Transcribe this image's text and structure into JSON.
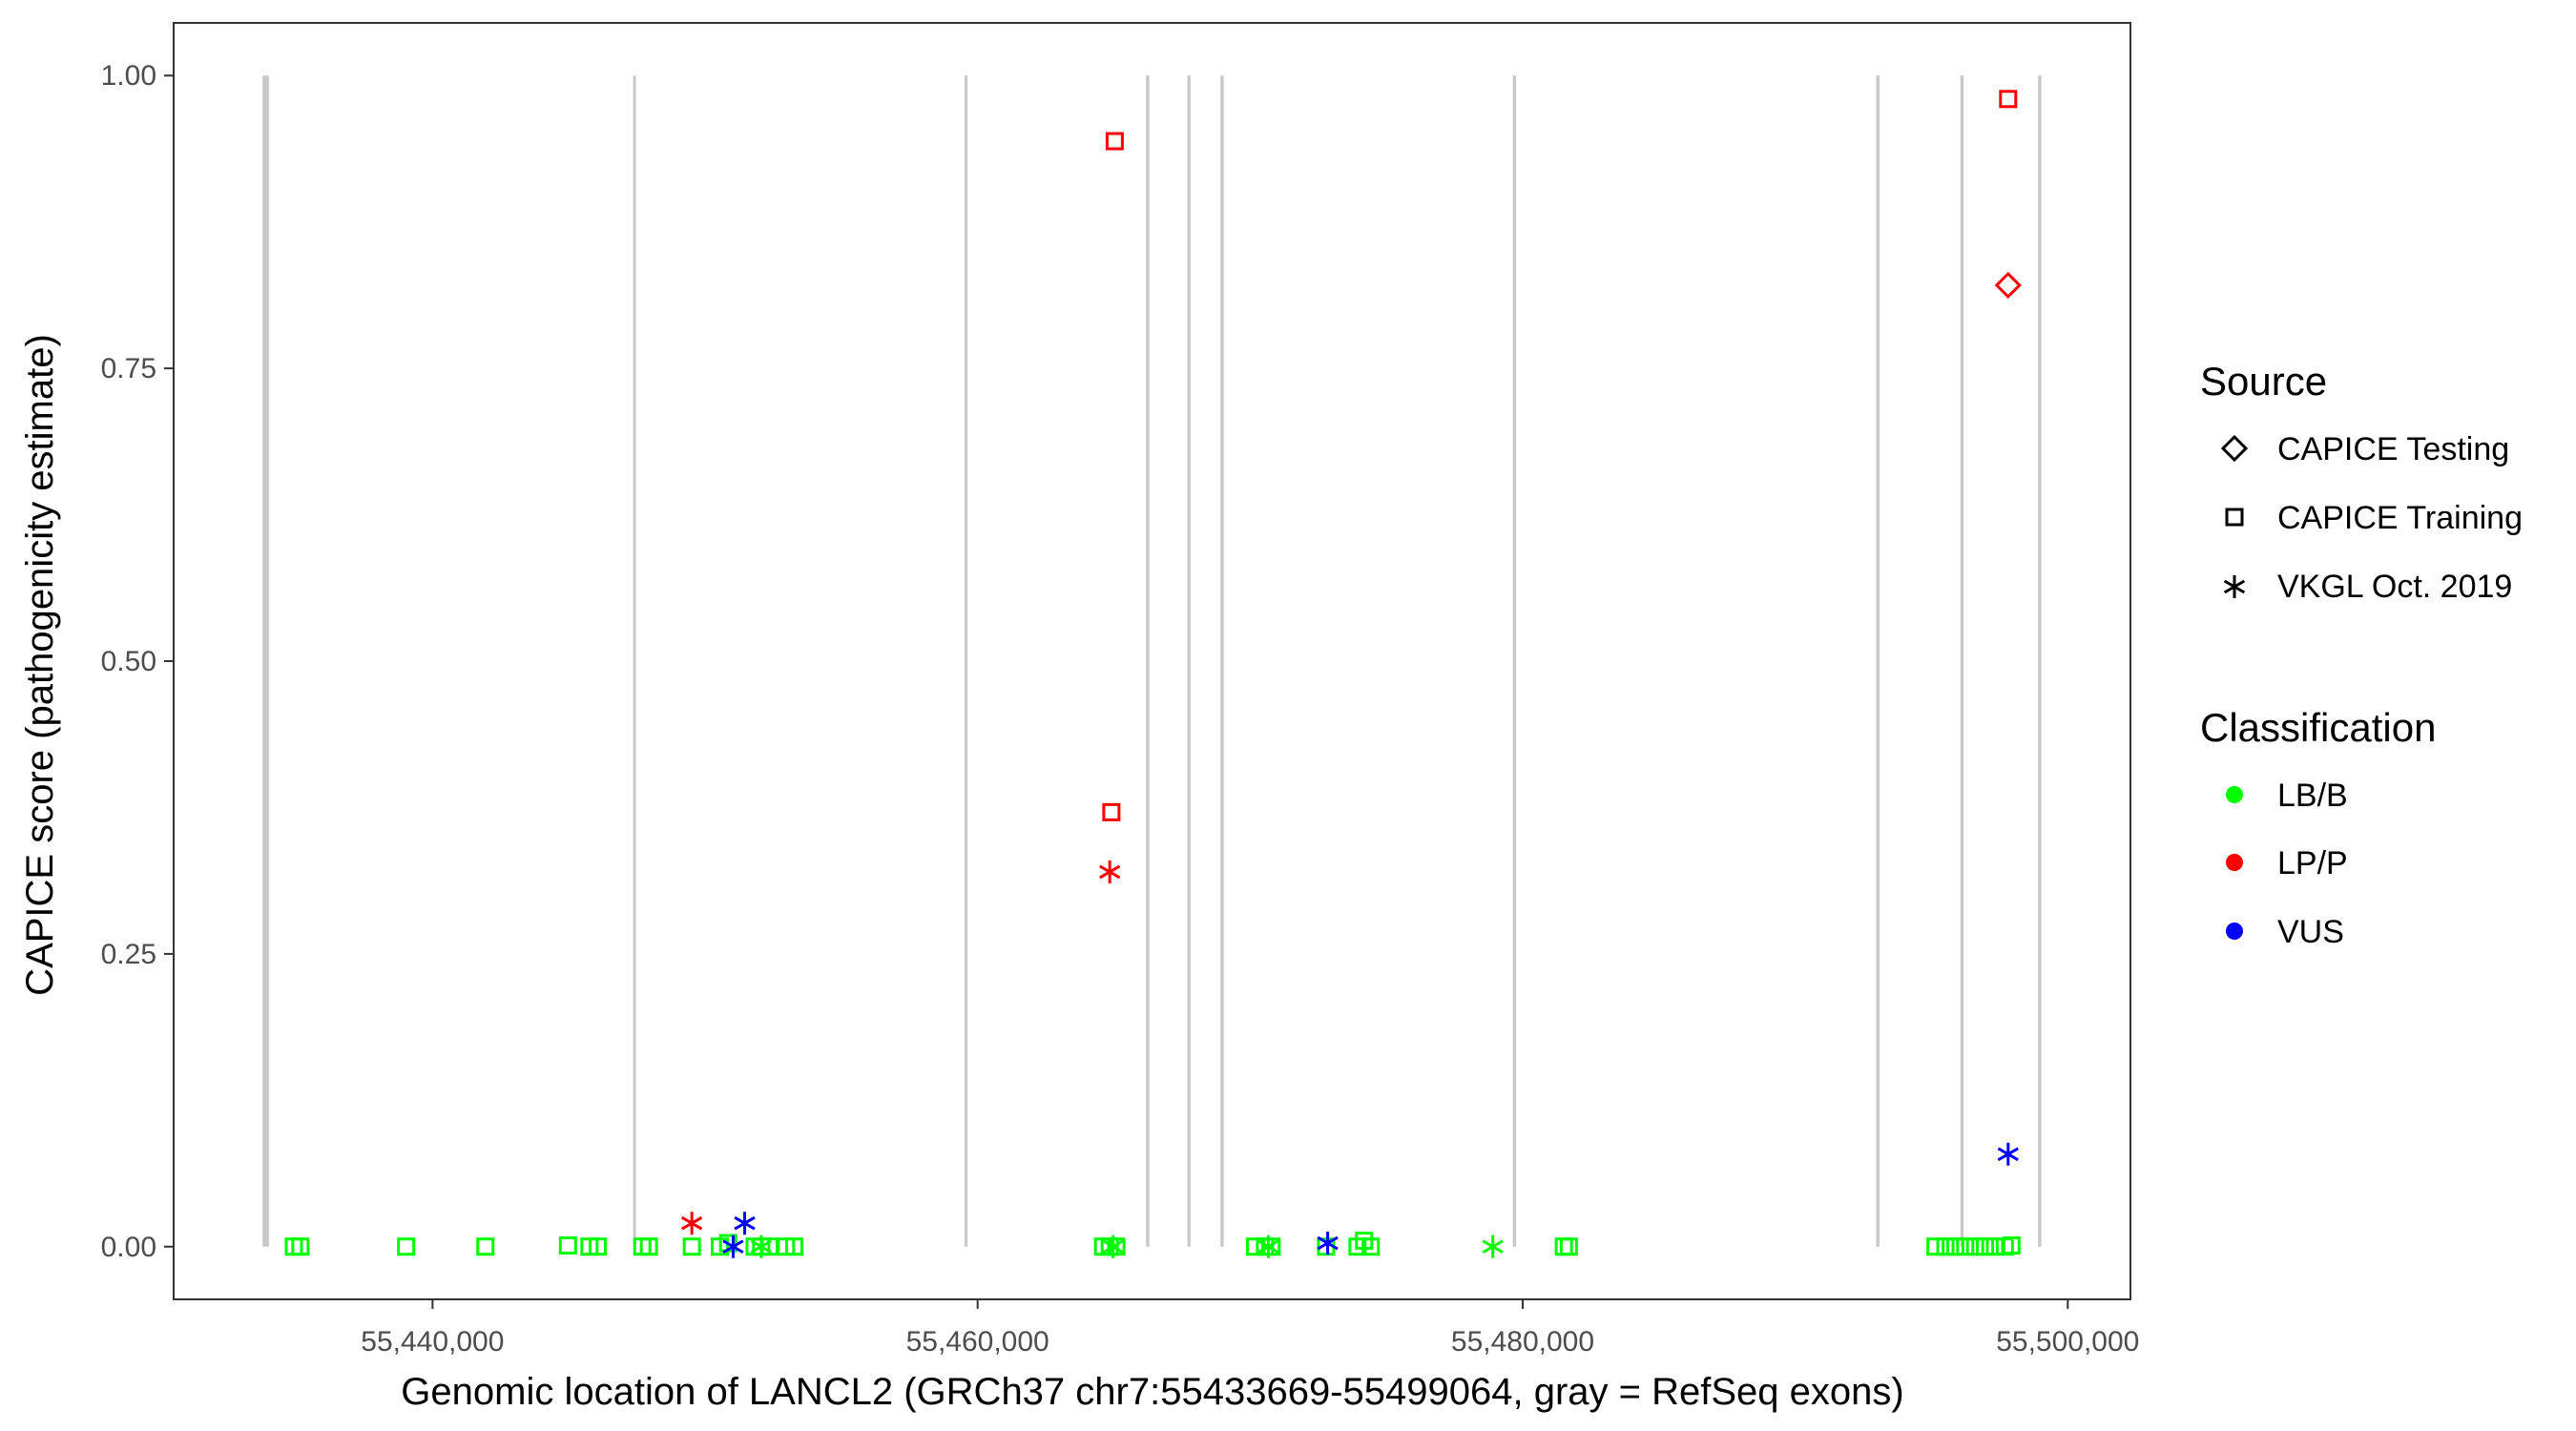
{
  "chart_data": {
    "type": "scatter",
    "xlabel": "Genomic location of LANCL2 (GRCh37 chr7:55433669-55499064, gray = RefSeq exons)",
    "ylabel": "CAPICE score (pathogenicity estimate)",
    "xlim": [
      55430500,
      55502300
    ],
    "ylim": [
      -0.045,
      1.045
    ],
    "x_ticks": [
      55440000,
      55460000,
      55480000,
      55500000
    ],
    "x_tick_labels": [
      "55,440,000",
      "55,460,000",
      "55,480,000",
      "55,500,000"
    ],
    "y_ticks": [
      0,
      0.25,
      0.5,
      0.75,
      1.0
    ],
    "y_tick_labels": [
      "0.00",
      "0.25",
      "0.50",
      "0.75",
      "1.00"
    ],
    "grid": false,
    "exon_color": "#c8c8c8",
    "exons": [
      [
        55433760,
        55434000
      ],
      [
        55447360,
        55447430
      ],
      [
        55459520,
        55459630
      ],
      [
        55466180,
        55466300
      ],
      [
        55467700,
        55467810
      ],
      [
        55468910,
        55469030
      ],
      [
        55479640,
        55479760
      ],
      [
        55492970,
        55493090
      ],
      [
        55496060,
        55496180
      ],
      [
        55498910,
        55499030
      ]
    ],
    "legend": {
      "placement": "right",
      "source": {
        "title": "Source",
        "items": [
          {
            "label": "CAPICE Testing",
            "shape": "diamond"
          },
          {
            "label": "CAPICE Training",
            "shape": "square"
          },
          {
            "label": "VKGL Oct. 2019",
            "shape": "asterisk"
          }
        ]
      },
      "classification": {
        "title": "Classification",
        "items": [
          {
            "label": "LB/B",
            "color": "#00ff00"
          },
          {
            "label": "LP/P",
            "color": "#ff0000"
          },
          {
            "label": "VUS",
            "color": "#0000ff"
          }
        ]
      }
    },
    "points": [
      {
        "x": 55434910,
        "y": 0,
        "source": "CAPICE Training",
        "class": "LB/B"
      },
      {
        "x": 55435152,
        "y": 0,
        "source": "CAPICE Training",
        "class": "LB/B"
      },
      {
        "x": 55439030,
        "y": 0,
        "source": "CAPICE Training",
        "class": "LB/B"
      },
      {
        "x": 55441939,
        "y": 0,
        "source": "CAPICE Training",
        "class": "LB/B"
      },
      {
        "x": 55444969,
        "y": 0.001,
        "source": "CAPICE Training",
        "class": "LB/B"
      },
      {
        "x": 55445757,
        "y": 0,
        "source": "CAPICE Training",
        "class": "LB/B"
      },
      {
        "x": 55446060,
        "y": 0,
        "source": "CAPICE Training",
        "class": "LB/B"
      },
      {
        "x": 55447696,
        "y": 0,
        "source": "CAPICE Training",
        "class": "LB/B"
      },
      {
        "x": 55447939,
        "y": 0,
        "source": "CAPICE Training",
        "class": "LB/B"
      },
      {
        "x": 55449514,
        "y": 0,
        "source": "CAPICE Training",
        "class": "LB/B"
      },
      {
        "x": 55450544,
        "y": 0,
        "source": "CAPICE Training",
        "class": "LB/B"
      },
      {
        "x": 55450847,
        "y": 0.003,
        "source": "CAPICE Training",
        "class": "LB/B"
      },
      {
        "x": 55451817,
        "y": 0,
        "source": "CAPICE Training",
        "class": "LB/B"
      },
      {
        "x": 55452060,
        "y": 0,
        "source": "CAPICE Training",
        "class": "LB/B"
      },
      {
        "x": 55452363,
        "y": 0,
        "source": "CAPICE Training",
        "class": "LB/B"
      },
      {
        "x": 55452969,
        "y": 0,
        "source": "CAPICE Training",
        "class": "LB/B"
      },
      {
        "x": 55453272,
        "y": 0,
        "source": "CAPICE Training",
        "class": "LB/B"
      },
      {
        "x": 55464604,
        "y": 0,
        "source": "CAPICE Training",
        "class": "LB/B"
      },
      {
        "x": 55464848,
        "y": 0,
        "source": "CAPICE Training",
        "class": "LB/B"
      },
      {
        "x": 55465090,
        "y": 0,
        "source": "CAPICE Training",
        "class": "LB/B"
      },
      {
        "x": 55470180,
        "y": 0,
        "source": "CAPICE Training",
        "class": "LB/B"
      },
      {
        "x": 55470545,
        "y": 0,
        "source": "CAPICE Training",
        "class": "LB/B"
      },
      {
        "x": 55470787,
        "y": 0,
        "source": "CAPICE Training",
        "class": "LB/B"
      },
      {
        "x": 55472787,
        "y": 0,
        "source": "CAPICE Training",
        "class": "LB/B"
      },
      {
        "x": 55473939,
        "y": 0,
        "source": "CAPICE Training",
        "class": "LB/B"
      },
      {
        "x": 55474181,
        "y": 0.005,
        "source": "CAPICE Training",
        "class": "LB/B"
      },
      {
        "x": 55474424,
        "y": 0,
        "source": "CAPICE Training",
        "class": "LB/B"
      },
      {
        "x": 55481511,
        "y": 0,
        "source": "CAPICE Training",
        "class": "LB/B"
      },
      {
        "x": 55481693,
        "y": 0,
        "source": "CAPICE Training",
        "class": "LB/B"
      },
      {
        "x": 55495146,
        "y": 0,
        "source": "CAPICE Training",
        "class": "LB/B"
      },
      {
        "x": 55495510,
        "y": 0,
        "source": "CAPICE Training",
        "class": "LB/B"
      },
      {
        "x": 55495873,
        "y": 0,
        "source": "CAPICE Training",
        "class": "LB/B"
      },
      {
        "x": 55496237,
        "y": 0,
        "source": "CAPICE Training",
        "class": "LB/B"
      },
      {
        "x": 55496600,
        "y": 0,
        "source": "CAPICE Training",
        "class": "LB/B"
      },
      {
        "x": 55496964,
        "y": 0,
        "source": "CAPICE Training",
        "class": "LB/B"
      },
      {
        "x": 55497328,
        "y": 0,
        "source": "CAPICE Training",
        "class": "LB/B"
      },
      {
        "x": 55497691,
        "y": 0,
        "source": "CAPICE Training",
        "class": "LB/B"
      },
      {
        "x": 55497934,
        "y": 0.001,
        "source": "CAPICE Training",
        "class": "LB/B"
      },
      {
        "x": 55452060,
        "y": 0,
        "source": "VKGL Oct. 2019",
        "class": "LB/B"
      },
      {
        "x": 55464969,
        "y": 0,
        "source": "VKGL Oct. 2019",
        "class": "LB/B"
      },
      {
        "x": 55470666,
        "y": 0,
        "source": "VKGL Oct. 2019",
        "class": "LB/B"
      },
      {
        "x": 55478905,
        "y": 0,
        "source": "VKGL Oct. 2019",
        "class": "LB/B"
      },
      {
        "x": 55451030,
        "y": 0,
        "source": "VKGL Oct. 2019",
        "class": "VUS"
      },
      {
        "x": 55451453,
        "y": 0.02,
        "source": "VKGL Oct. 2019",
        "class": "VUS"
      },
      {
        "x": 55472845,
        "y": 0.003,
        "source": "VKGL Oct. 2019",
        "class": "VUS"
      },
      {
        "x": 55497812,
        "y": 0.079,
        "source": "VKGL Oct. 2019",
        "class": "VUS"
      },
      {
        "x": 55449514,
        "y": 0.02,
        "source": "VKGL Oct. 2019",
        "class": "LP/P"
      },
      {
        "x": 55464848,
        "y": 0.32,
        "source": "VKGL Oct. 2019",
        "class": "LP/P"
      },
      {
        "x": 55464908,
        "y": 0.371,
        "source": "CAPICE Training",
        "class": "LP/P"
      },
      {
        "x": 55465030,
        "y": 0.944,
        "source": "CAPICE Training",
        "class": "LP/P"
      },
      {
        "x": 55497812,
        "y": 0.98,
        "source": "CAPICE Training",
        "class": "LP/P"
      },
      {
        "x": 55497812,
        "y": 0.821,
        "source": "CAPICE Testing",
        "class": "LP/P"
      }
    ]
  }
}
